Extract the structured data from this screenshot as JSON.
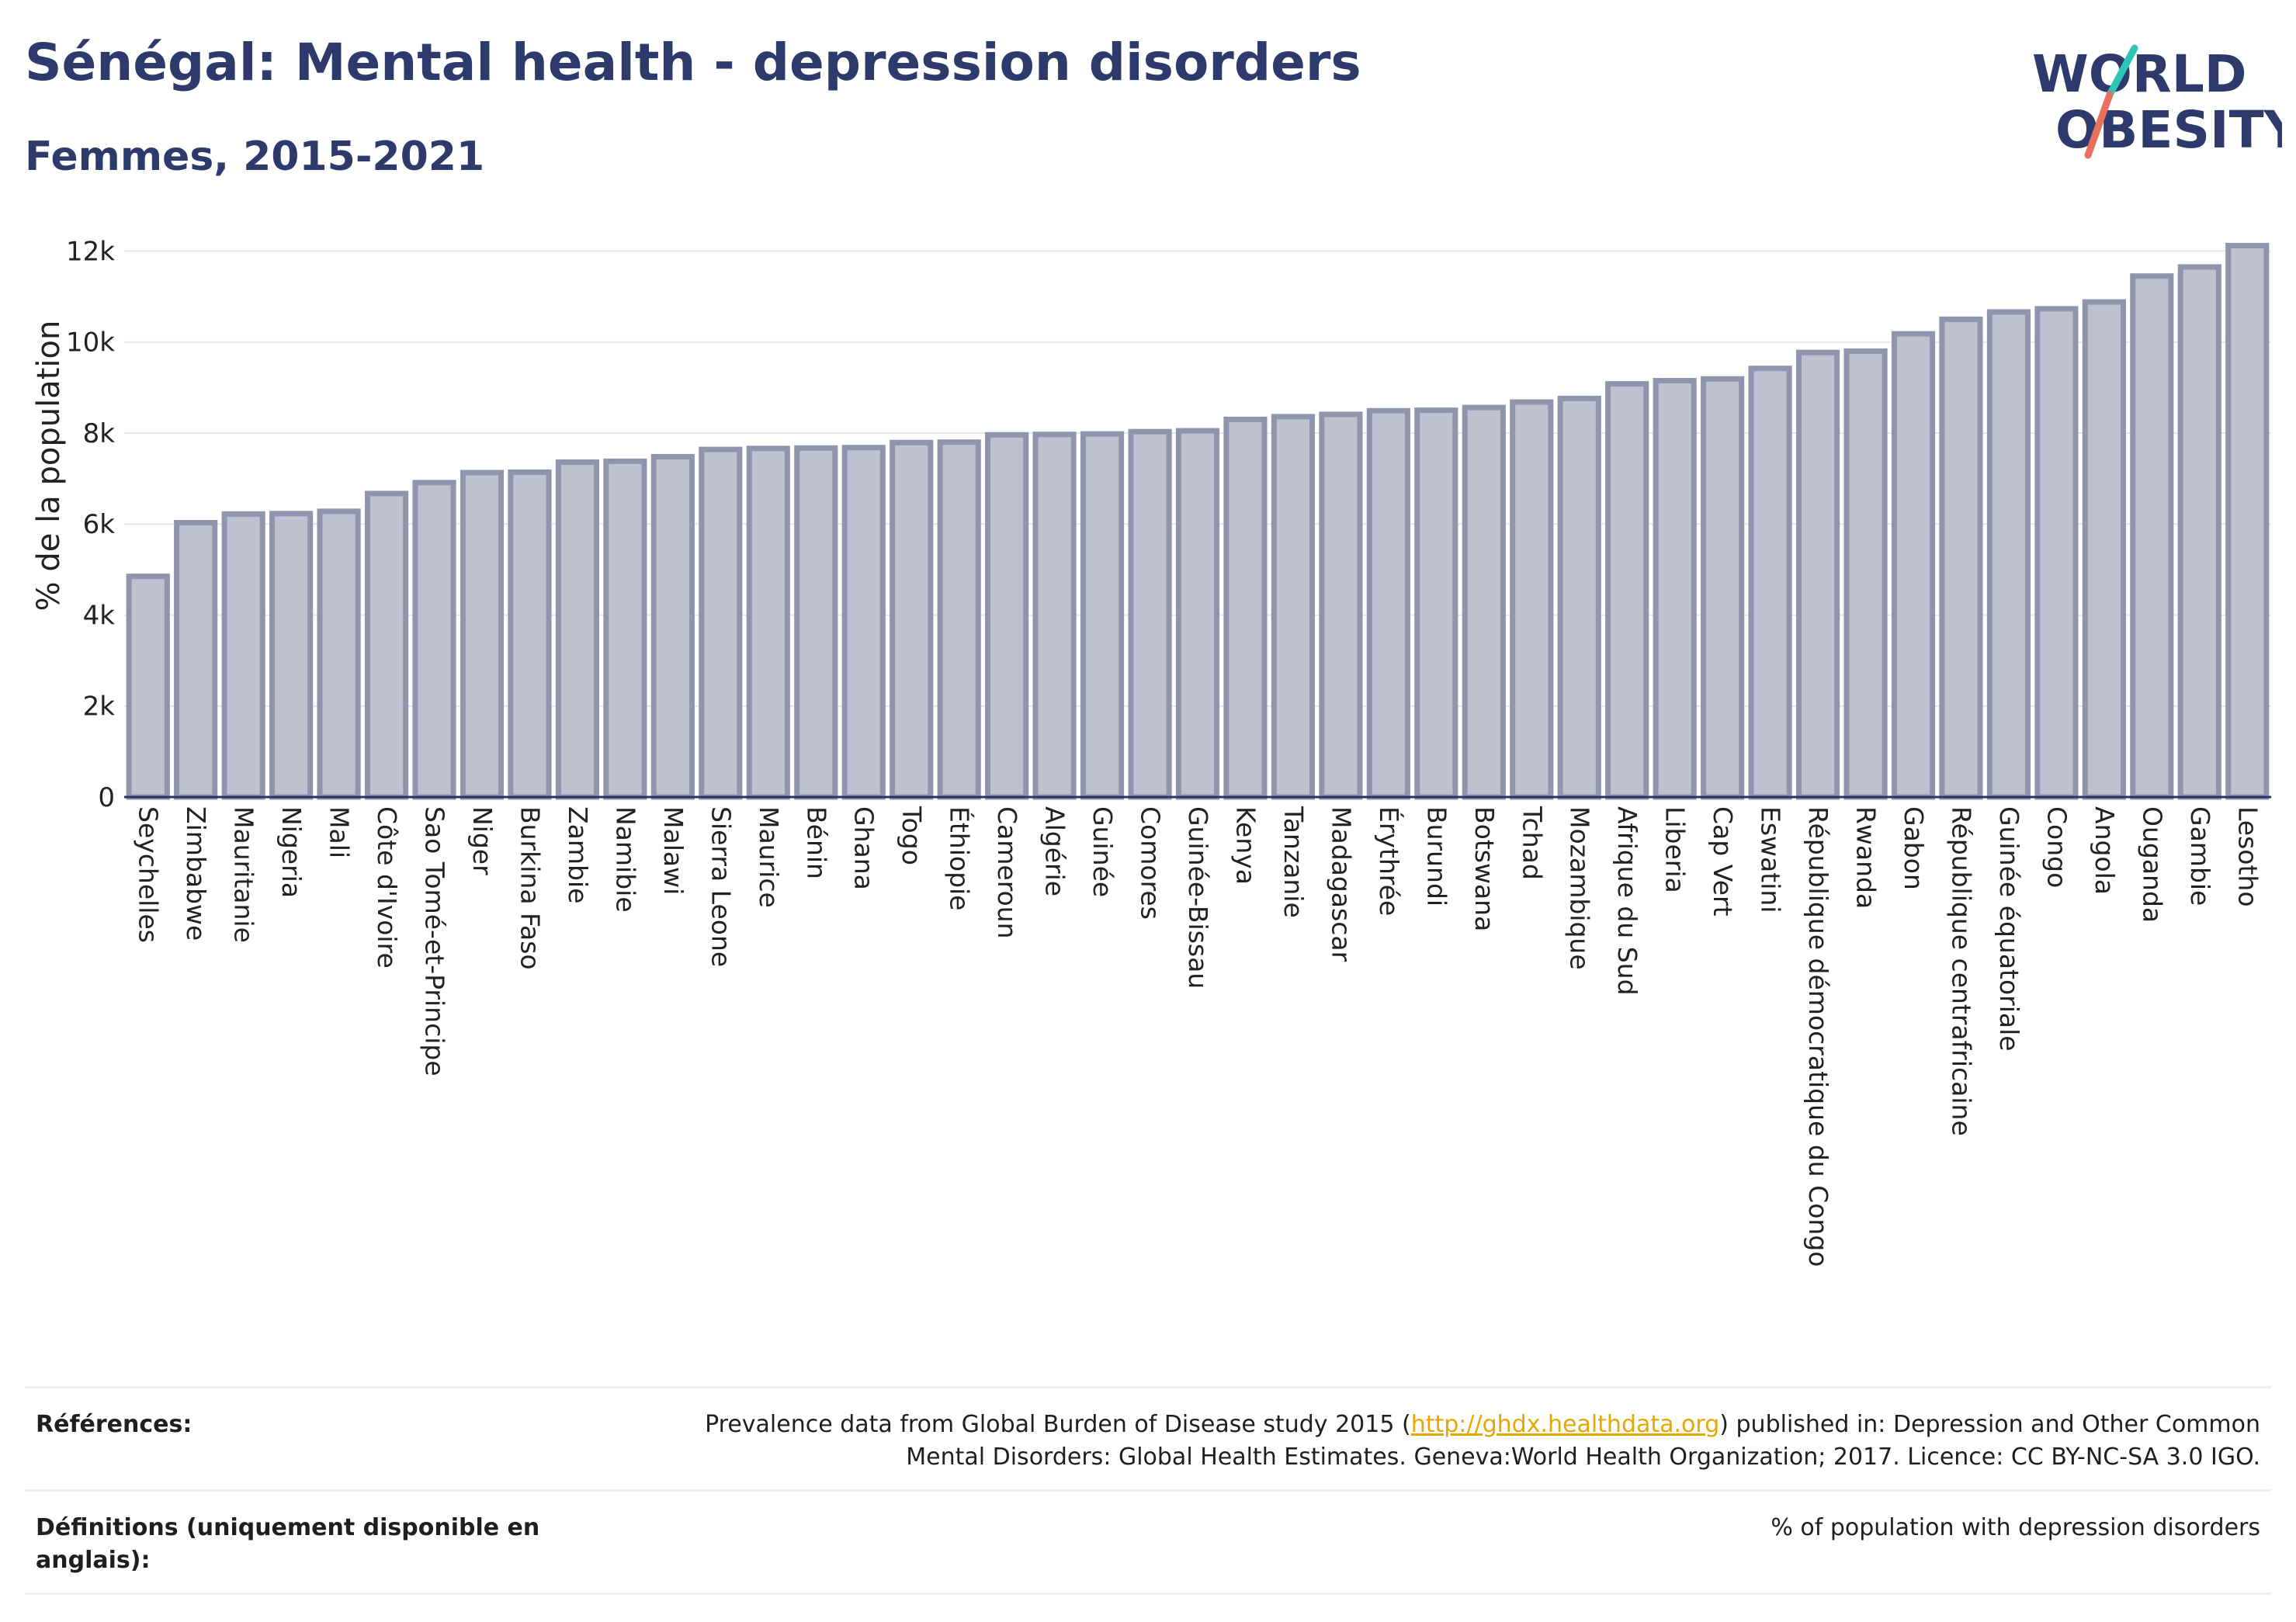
{
  "title": "Sénégal: Mental health - depression disorders",
  "subtitle": "Femmes, 2015-2021",
  "logo": {
    "line1": "WORLD",
    "line2": "OBESITY",
    "accent_teal": "#2ec4b6",
    "accent_coral": "#e8705f"
  },
  "colors": {
    "bar_fill": "#bec2d0",
    "bar_stroke": "#8f95ad",
    "title": "#2d3a6b",
    "link": "#e6a800"
  },
  "chart_data": {
    "type": "bar",
    "ylabel": "% de la population",
    "xlabel": "",
    "ylim": [
      0,
      12400
    ],
    "yticks": [
      0,
      2000,
      4000,
      6000,
      8000,
      10000,
      12000
    ],
    "ytick_labels": [
      "0",
      "2k",
      "4k",
      "6k",
      "8k",
      "10k",
      "12k"
    ],
    "grid": true,
    "categories": [
      "Seychelles",
      "Zimbabwe",
      "Mauritanie",
      "Nigeria",
      "Mali",
      "Côte d'Ivoire",
      "Sao Tomé-et-Principe",
      "Niger",
      "Burkina Faso",
      "Zambie",
      "Namibie",
      "Malawi",
      "Sierra Leone",
      "Maurice",
      "Bénin",
      "Ghana",
      "Togo",
      "Éthiopie",
      "Cameroun",
      "Algérie",
      "Guinée",
      "Comores",
      "Guinée-Bissau",
      "Kenya",
      "Tanzanie",
      "Madagascar",
      "Érythrée",
      "Burundi",
      "Botswana",
      "Tchad",
      "Mozambique",
      "Afrique du Sud",
      "Liberia",
      "Cap Vert",
      "Eswatini",
      "République démocratique du Congo",
      "Rwanda",
      "Gabon",
      "République centrafricaine",
      "Guinée équatoriale",
      "Congo",
      "Angola",
      "Ouganda",
      "Gambie",
      "Lesotho"
    ],
    "values": [
      4850,
      6030,
      6220,
      6230,
      6280,
      6670,
      6910,
      7130,
      7140,
      7360,
      7380,
      7480,
      7640,
      7660,
      7670,
      7680,
      7790,
      7800,
      7960,
      7970,
      7980,
      8030,
      8050,
      8300,
      8360,
      8410,
      8490,
      8500,
      8560,
      8680,
      8760,
      9080,
      9150,
      9190,
      9420,
      9770,
      9800,
      10180,
      10500,
      10660,
      10730,
      10880,
      11450,
      11650,
      12120
    ]
  },
  "references": {
    "label": "Références:",
    "text_before": "Prevalence data from Global Burden of Disease study 2015 (",
    "link": "http://ghdx.healthdata.org",
    "text_after": ") published in: Depression and Other Common Mental Disorders: Global Health Estimates. Geneva:World Health Organization; 2017. Licence: CC BY-NC-SA 3.0 IGO."
  },
  "definitions": {
    "label": "Définitions (uniquement disponible en anglais):",
    "text": "% of population with depression disorders"
  }
}
